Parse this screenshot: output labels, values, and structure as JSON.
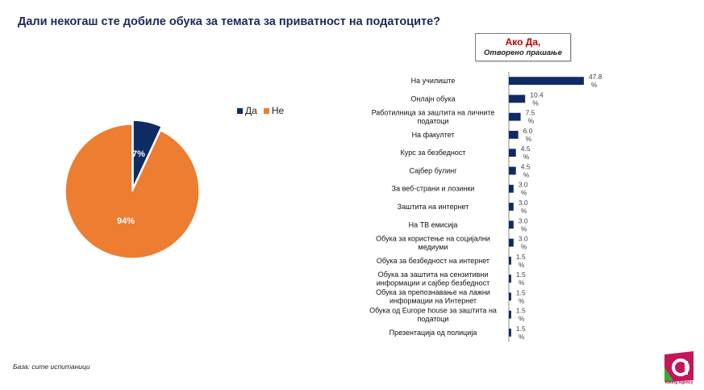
{
  "title": "Дали некогаш сте добиле обука за темата за приватност на податоците?",
  "note": {
    "line1": "Ако Да,",
    "line2": "Отворено прашање"
  },
  "base_note": "База: сите испитаници",
  "logo": {
    "text": "Rating Agency",
    "icon": "rating-agency-logo"
  },
  "colors": {
    "da": "#0f2b63",
    "ne": "#ed7d31",
    "bar": "#0f2b63"
  },
  "chart_data": [
    {
      "type": "pie",
      "labels": [
        "Да",
        "Не"
      ],
      "values": [
        7,
        94
      ],
      "value_labels": [
        "7%",
        "94%"
      ],
      "legend": "top-right"
    },
    {
      "type": "bar",
      "orientation": "horizontal",
      "categories": [
        "На училиште",
        "Онлајн обука",
        "Работилница за заштита на личните податоци",
        "На факултет",
        "Курс за безбедност",
        "Сајбер булинг",
        "За веб-страни и лозинки",
        "Заштита на интернет",
        "На ТВ емисија",
        "Обука за користење на социјални медиуми",
        "Обука за безбедност на интернет",
        "Обука за заштита на сензитивни информации и сајбер безбедност",
        "Обука за препознавање на лажни информации на Интернет",
        "Обука од Europe house за заштита на податоци",
        "Презентација од полиција"
      ],
      "category_lines": [
        [
          "На училиште"
        ],
        [
          "Онлајн обука"
        ],
        [
          "Работилница за заштита на личните",
          "податоци"
        ],
        [
          "На факултет"
        ],
        [
          "Курс за безбедност"
        ],
        [
          "Сајбер булинг"
        ],
        [
          "За веб-страни и лозинки"
        ],
        [
          "Заштита на интернет"
        ],
        [
          "На ТВ емисија"
        ],
        [
          "Обука за користење на социјални",
          "медиуми"
        ],
        [
          "Обука за безбедност на интернет"
        ],
        [
          "Обука за заштита на сензитивни",
          "информации и сајбер безбедност"
        ],
        [
          "Обука за препознавање на лажни",
          "информации на Интернет"
        ],
        [
          "Обука од Europe house за заштита на",
          "податоци"
        ],
        [
          "Презентација од полиција"
        ]
      ],
      "values": [
        47.8,
        10.4,
        7.5,
        6.0,
        4.5,
        4.5,
        3.0,
        3.0,
        3.0,
        3.0,
        1.5,
        1.5,
        1.5,
        1.5,
        1.5
      ],
      "value_labels": [
        "47.8",
        "10.4",
        "7.5",
        "6.0",
        "4.5",
        "4.5",
        "3.0",
        "3.0",
        "3.0",
        "3.0",
        "1.5",
        "1.5",
        "1.5",
        "1.5",
        "1.5"
      ],
      "value_unit": "%"
    }
  ]
}
